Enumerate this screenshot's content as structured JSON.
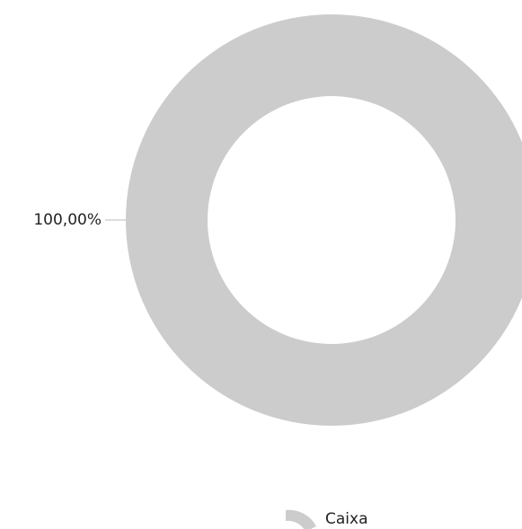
{
  "chart_data": {
    "type": "pie",
    "categories": [
      "Caixa"
    ],
    "values": [
      100
    ],
    "value_labels": [
      "100,00%"
    ],
    "colors": [
      "#cccccc"
    ],
    "donut": true,
    "legend": "bottom"
  }
}
